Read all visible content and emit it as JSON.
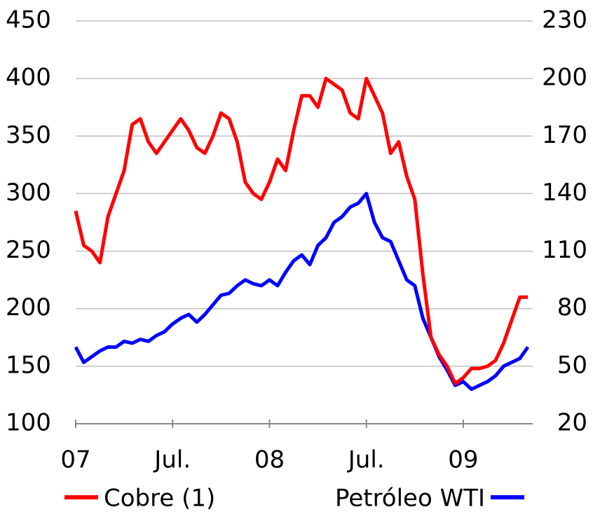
{
  "chart_data": {
    "type": "line",
    "x": [
      0,
      0.5,
      1,
      1.5,
      2,
      2.5,
      3,
      3.5,
      4,
      4.5,
      5,
      5.5,
      6,
      6.5,
      7,
      7.5,
      8,
      8.5,
      9,
      9.5,
      10,
      10.5,
      11,
      11.5,
      12,
      12.5,
      13,
      13.5,
      14,
      14.5,
      15,
      15.5,
      16,
      16.5,
      17,
      17.5,
      18,
      18.5,
      19,
      19.5,
      20,
      20.5,
      21,
      21.5,
      22,
      22.5,
      23,
      23.5,
      24,
      24.5,
      25,
      25.5,
      26,
      26.5,
      27,
      27.5,
      28
    ],
    "series": [
      {
        "name": "Cobre (1)",
        "color": "#ff0000",
        "axis": "y",
        "values": [
          285,
          255,
          250,
          240,
          280,
          300,
          320,
          360,
          365,
          345,
          335,
          345,
          355,
          365,
          355,
          340,
          335,
          350,
          370,
          365,
          345,
          310,
          300,
          295,
          310,
          330,
          320,
          355,
          385,
          385,
          375,
          400,
          395,
          390,
          370,
          365,
          400,
          385,
          370,
          335,
          345,
          315,
          295,
          230,
          175,
          160,
          150,
          135,
          140,
          148,
          148,
          150,
          155,
          170,
          190,
          210,
          210
        ]
      },
      {
        "name": "Petróleo WTI",
        "color": "#0000ff",
        "axis": "y2",
        "values": [
          60,
          52,
          55,
          58,
          60,
          60,
          63,
          62,
          64,
          63,
          66,
          68,
          72,
          75,
          77,
          73,
          77,
          82,
          87,
          88,
          92,
          95,
          93,
          92,
          95,
          92,
          99,
          105,
          108,
          103,
          113,
          117,
          125,
          128,
          133,
          135,
          140,
          125,
          117,
          115,
          105,
          95,
          92,
          75,
          65,
          55,
          48,
          40,
          42,
          38,
          40,
          42,
          45,
          50,
          52,
          54,
          60
        ]
      }
    ],
    "xlim": [
      0,
      28.3
    ],
    "xticks": [
      {
        "value": 0,
        "label": "07"
      },
      {
        "value": 6,
        "label": "Jul."
      },
      {
        "value": 12,
        "label": "08"
      },
      {
        "value": 18,
        "label": "Jul."
      },
      {
        "value": 24,
        "label": "09"
      }
    ],
    "ylim": [
      100,
      450
    ],
    "yticks": [
      100,
      150,
      200,
      250,
      300,
      350,
      400,
      450
    ],
    "y2lim": [
      20,
      230
    ],
    "y2ticks": [
      20,
      50,
      80,
      110,
      140,
      170,
      200,
      230
    ],
    "grid": true
  }
}
